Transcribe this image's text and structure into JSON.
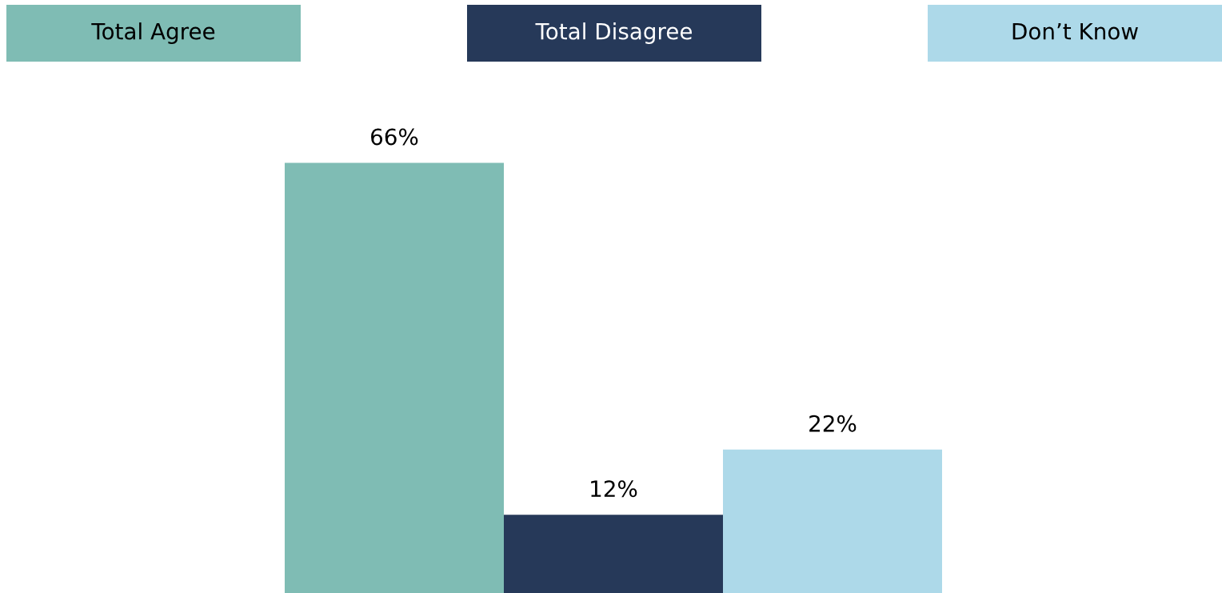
{
  "chart_data": {
    "type": "bar",
    "categories": [
      null
    ],
    "series": [
      {
        "name": "Total Agree",
        "color": "#7fbcb4",
        "values": [
          66
        ],
        "value_labels": [
          "66%"
        ]
      },
      {
        "name": "Total Disagree",
        "color": "#263959",
        "values": [
          12
        ],
        "value_labels": [
          "12%"
        ]
      },
      {
        "name": "Don’t Know",
        "color": "#add9e9",
        "values": [
          22
        ],
        "value_labels": [
          "22%"
        ]
      }
    ],
    "legend": "top"
  }
}
